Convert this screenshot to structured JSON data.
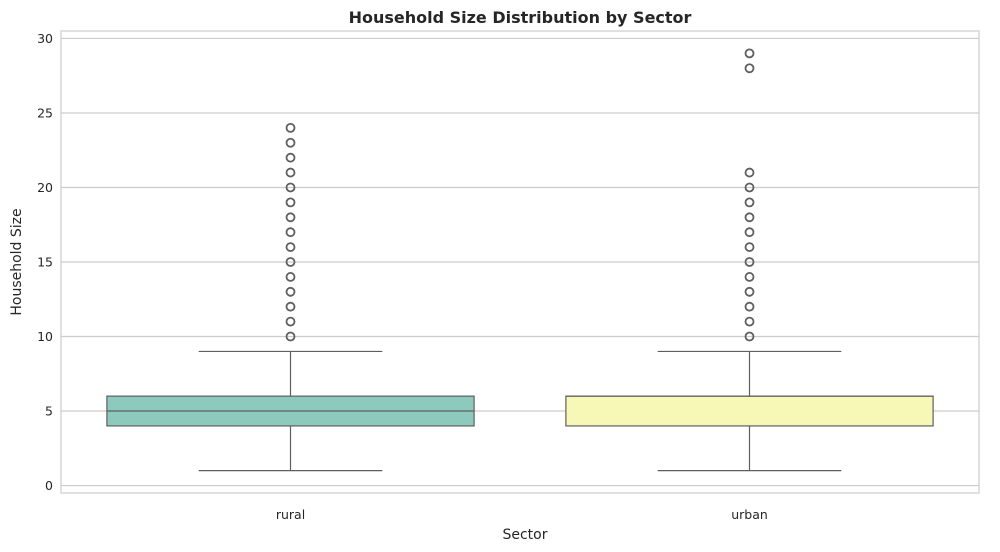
{
  "chart_data": {
    "type": "box",
    "title": "Household Size Distribution by Sector",
    "xlabel": "Sector",
    "ylabel": "Household Size",
    "ylim": [
      -0.5,
      30.5
    ],
    "yticks": [
      0,
      5,
      10,
      15,
      20,
      25,
      30
    ],
    "grid": true,
    "categories": [
      "rural",
      "urban"
    ],
    "boxes": [
      {
        "category": "rural",
        "whisker_low": 1,
        "q1": 4,
        "median": 5,
        "q3": 6,
        "whisker_high": 9,
        "outliers": [
          10,
          11,
          12,
          13,
          14,
          15,
          16,
          17,
          18,
          19,
          20,
          21,
          22,
          23,
          24
        ],
        "color": "#8dc9bc"
      },
      {
        "category": "urban",
        "whisker_low": 1,
        "q1": 4,
        "median": 6,
        "q3": 6,
        "whisker_high": 9,
        "outliers": [
          10,
          11,
          12,
          13,
          14,
          15,
          16,
          17,
          18,
          19,
          20,
          21,
          28,
          29
        ],
        "color": "#f7f8b5"
      }
    ]
  }
}
